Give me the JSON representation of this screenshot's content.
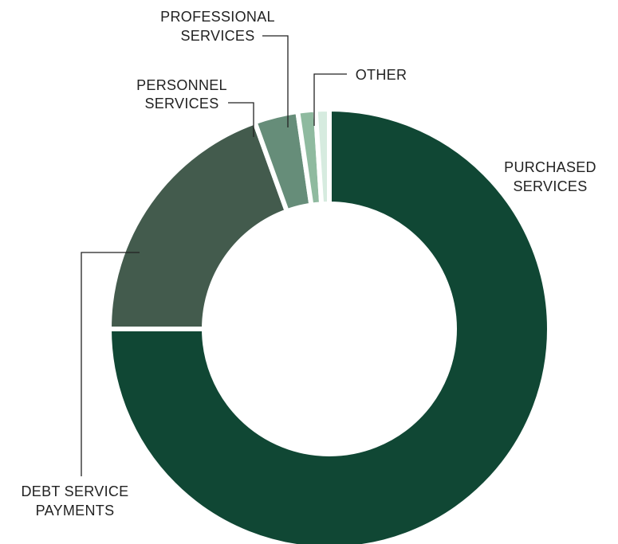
{
  "chart_data": {
    "type": "pie",
    "variant": "donut",
    "title": "",
    "categories": [
      "PURCHASED SERVICES",
      "DEBT SERVICE PAYMENTS",
      "PERSONNEL SERVICES",
      "PROFESSIONAL SERVICES",
      "OTHER"
    ],
    "values": [
      75.0,
      19.5,
      3.2,
      1.3,
      1.0
    ],
    "unit": "%",
    "colors": [
      "#104734",
      "#435b4d",
      "#668d79",
      "#8fba9f",
      "#d6ebdf"
    ],
    "labels": {
      "purchased": [
        "PURCHASED",
        "SERVICES"
      ],
      "debt": [
        "DEBT SERVICE",
        "PAYMENTS"
      ],
      "personnel": [
        "PERSONNEL",
        "SERVICES"
      ],
      "professional": [
        "PROFESSIONAL",
        "SERVICES"
      ],
      "other": [
        "OTHER"
      ]
    },
    "legend": "none (leader-line labels)"
  }
}
